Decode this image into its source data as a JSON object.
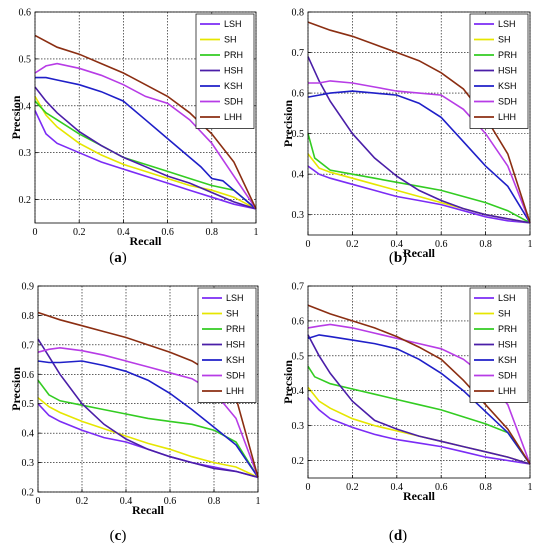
{
  "colors": {
    "LSH": "#7b2cf5",
    "SH": "#e6e600",
    "PRH": "#33cc22",
    "HSH": "#4a1ea8",
    "KSH": "#1f1fc8",
    "SDH": "#b73ce6",
    "LHH": "#8b2e12"
  },
  "chart_data": [
    {
      "type": "line",
      "panel_label": "a",
      "xlabel": "Recall",
      "ylabel": "Precsion",
      "xlim": [
        0,
        1
      ],
      "ylim": [
        0.15,
        0.6
      ],
      "xticks": [
        0,
        0.2,
        0.4,
        0.6,
        0.8,
        1
      ],
      "xtick_labels": [
        "0",
        "0.2",
        "0.4",
        "0.6",
        "0.8",
        "1"
      ],
      "yticks": [
        0.2,
        0.3,
        0.4,
        0.5,
        0.6
      ],
      "ytick_labels": [
        "0.2",
        "0.3",
        "0.4",
        "0.5",
        "0.6"
      ],
      "grid": true,
      "legend_position": "top-right",
      "series": [
        {
          "name": "LSH",
          "x": [
            0,
            0.05,
            0.1,
            0.2,
            0.3,
            0.4,
            0.5,
            0.6,
            0.7,
            0.8,
            0.9,
            1.0
          ],
          "y": [
            0.39,
            0.34,
            0.32,
            0.3,
            0.28,
            0.265,
            0.25,
            0.235,
            0.22,
            0.205,
            0.19,
            0.18
          ]
        },
        {
          "name": "SH",
          "x": [
            0,
            0.05,
            0.1,
            0.2,
            0.3,
            0.4,
            0.5,
            0.6,
            0.7,
            0.8,
            0.9,
            1.0
          ],
          "y": [
            0.42,
            0.38,
            0.355,
            0.32,
            0.295,
            0.275,
            0.26,
            0.245,
            0.23,
            0.22,
            0.205,
            0.18
          ]
        },
        {
          "name": "PRH",
          "x": [
            0,
            0.05,
            0.1,
            0.2,
            0.3,
            0.4,
            0.5,
            0.6,
            0.7,
            0.8,
            0.9,
            1.0
          ],
          "y": [
            0.41,
            0.385,
            0.37,
            0.34,
            0.315,
            0.29,
            0.275,
            0.26,
            0.245,
            0.23,
            0.22,
            0.18
          ]
        },
        {
          "name": "HSH",
          "x": [
            0,
            0.05,
            0.1,
            0.2,
            0.3,
            0.4,
            0.5,
            0.6,
            0.7,
            0.8,
            0.9,
            1.0
          ],
          "y": [
            0.44,
            0.41,
            0.385,
            0.345,
            0.315,
            0.29,
            0.27,
            0.25,
            0.235,
            0.215,
            0.195,
            0.18
          ]
        },
        {
          "name": "KSH",
          "x": [
            0,
            0.05,
            0.1,
            0.2,
            0.3,
            0.4,
            0.5,
            0.6,
            0.7,
            0.75,
            0.8,
            0.85,
            0.9,
            1.0
          ],
          "y": [
            0.46,
            0.46,
            0.455,
            0.445,
            0.43,
            0.41,
            0.37,
            0.33,
            0.29,
            0.27,
            0.245,
            0.24,
            0.22,
            0.18
          ]
        },
        {
          "name": "SDH",
          "x": [
            0,
            0.05,
            0.1,
            0.2,
            0.3,
            0.4,
            0.5,
            0.6,
            0.7,
            0.8,
            0.9,
            1.0
          ],
          "y": [
            0.47,
            0.485,
            0.49,
            0.48,
            0.465,
            0.445,
            0.42,
            0.405,
            0.37,
            0.32,
            0.25,
            0.18
          ]
        },
        {
          "name": "LHH",
          "x": [
            0,
            0.1,
            0.2,
            0.3,
            0.4,
            0.5,
            0.6,
            0.7,
            0.8,
            0.9,
            1.0
          ],
          "y": [
            0.55,
            0.525,
            0.51,
            0.49,
            0.47,
            0.445,
            0.42,
            0.385,
            0.34,
            0.28,
            0.18
          ]
        }
      ]
    },
    {
      "type": "line",
      "panel_label": "b",
      "xlabel": "Recall",
      "ylabel": "Precision",
      "xlim": [
        0,
        1
      ],
      "ylim": [
        0.25,
        0.8
      ],
      "xticks": [
        0,
        0.2,
        0.4,
        0.6,
        0.8,
        1
      ],
      "xtick_labels": [
        "0",
        "0.2",
        "0.4",
        "0.6",
        "0.8",
        "1"
      ],
      "yticks": [
        0.3,
        0.4,
        0.5,
        0.6,
        0.7,
        0.8
      ],
      "ytick_labels": [
        "0.3",
        "0.4",
        "0.5",
        "0.6",
        "0.7",
        "0.8"
      ],
      "grid": true,
      "legend_position": "top-right",
      "series": [
        {
          "name": "LSH",
          "x": [
            0,
            0.05,
            0.1,
            0.2,
            0.3,
            0.4,
            0.5,
            0.6,
            0.7,
            0.8,
            0.9,
            1.0
          ],
          "y": [
            0.42,
            0.4,
            0.39,
            0.375,
            0.36,
            0.345,
            0.335,
            0.325,
            0.31,
            0.295,
            0.285,
            0.28
          ]
        },
        {
          "name": "SH",
          "x": [
            0,
            0.05,
            0.1,
            0.2,
            0.3,
            0.4,
            0.5,
            0.6,
            0.7,
            0.8,
            0.9,
            1.0
          ],
          "y": [
            0.45,
            0.415,
            0.405,
            0.39,
            0.375,
            0.36,
            0.345,
            0.33,
            0.315,
            0.3,
            0.29,
            0.28
          ]
        },
        {
          "name": "PRH",
          "x": [
            0,
            0.03,
            0.1,
            0.2,
            0.3,
            0.4,
            0.5,
            0.6,
            0.7,
            0.8,
            0.9,
            1.0
          ],
          "y": [
            0.5,
            0.44,
            0.41,
            0.4,
            0.39,
            0.38,
            0.37,
            0.36,
            0.345,
            0.33,
            0.31,
            0.28
          ]
        },
        {
          "name": "HSH",
          "x": [
            0,
            0.05,
            0.1,
            0.2,
            0.3,
            0.4,
            0.5,
            0.6,
            0.7,
            0.8,
            0.9,
            1.0
          ],
          "y": [
            0.69,
            0.63,
            0.58,
            0.5,
            0.44,
            0.395,
            0.36,
            0.335,
            0.315,
            0.3,
            0.29,
            0.28
          ]
        },
        {
          "name": "KSH",
          "x": [
            0,
            0.05,
            0.1,
            0.2,
            0.3,
            0.4,
            0.5,
            0.6,
            0.7,
            0.8,
            0.9,
            1.0
          ],
          "y": [
            0.59,
            0.595,
            0.6,
            0.605,
            0.6,
            0.595,
            0.575,
            0.54,
            0.48,
            0.42,
            0.37,
            0.28
          ]
        },
        {
          "name": "SDH",
          "x": [
            0,
            0.05,
            0.1,
            0.2,
            0.3,
            0.4,
            0.5,
            0.6,
            0.7,
            0.8,
            0.9,
            1.0
          ],
          "y": [
            0.625,
            0.625,
            0.63,
            0.625,
            0.615,
            0.605,
            0.6,
            0.595,
            0.56,
            0.5,
            0.42,
            0.28
          ]
        },
        {
          "name": "LHH",
          "x": [
            0,
            0.1,
            0.2,
            0.3,
            0.4,
            0.5,
            0.6,
            0.7,
            0.8,
            0.9,
            1.0
          ],
          "y": [
            0.775,
            0.755,
            0.74,
            0.72,
            0.7,
            0.68,
            0.65,
            0.61,
            0.54,
            0.45,
            0.28
          ]
        }
      ]
    },
    {
      "type": "line",
      "panel_label": "c",
      "xlabel": "Recall",
      "ylabel": "Precsion",
      "xlim": [
        0,
        1
      ],
      "ylim": [
        0.2,
        0.9
      ],
      "xticks": [
        0,
        0.2,
        0.4,
        0.6,
        0.8,
        1
      ],
      "xtick_labels": [
        "0",
        "0.2",
        "0.4",
        "0.6",
        "0.8",
        "1"
      ],
      "yticks": [
        0.2,
        0.3,
        0.4,
        0.5,
        0.6,
        0.7,
        0.8,
        0.9
      ],
      "ytick_labels": [
        "0.2",
        "0.3",
        "0.4",
        "0.5",
        "0.6",
        "0.7",
        "0.8",
        "0.9"
      ],
      "grid": true,
      "legend_position": "top-right",
      "series": [
        {
          "name": "LSH",
          "x": [
            0,
            0.05,
            0.1,
            0.2,
            0.3,
            0.4,
            0.5,
            0.6,
            0.7,
            0.8,
            0.9,
            1.0
          ],
          "y": [
            0.5,
            0.46,
            0.44,
            0.41,
            0.385,
            0.37,
            0.345,
            0.32,
            0.3,
            0.285,
            0.27,
            0.25
          ]
        },
        {
          "name": "SH",
          "x": [
            0,
            0.05,
            0.1,
            0.2,
            0.3,
            0.4,
            0.5,
            0.6,
            0.7,
            0.8,
            0.9,
            1.0
          ],
          "y": [
            0.52,
            0.49,
            0.47,
            0.44,
            0.415,
            0.39,
            0.365,
            0.345,
            0.32,
            0.3,
            0.285,
            0.25
          ]
        },
        {
          "name": "PRH",
          "x": [
            0,
            0.05,
            0.1,
            0.2,
            0.3,
            0.4,
            0.5,
            0.6,
            0.7,
            0.8,
            0.9,
            1.0
          ],
          "y": [
            0.58,
            0.53,
            0.51,
            0.495,
            0.48,
            0.465,
            0.45,
            0.44,
            0.43,
            0.41,
            0.37,
            0.25
          ]
        },
        {
          "name": "HSH",
          "x": [
            0,
            0.05,
            0.1,
            0.2,
            0.3,
            0.4,
            0.5,
            0.6,
            0.7,
            0.8,
            0.9,
            1.0
          ],
          "y": [
            0.72,
            0.66,
            0.6,
            0.5,
            0.43,
            0.38,
            0.345,
            0.32,
            0.3,
            0.28,
            0.27,
            0.25
          ]
        },
        {
          "name": "KSH",
          "x": [
            0,
            0.05,
            0.1,
            0.2,
            0.3,
            0.4,
            0.5,
            0.6,
            0.7,
            0.8,
            0.9,
            1.0
          ],
          "y": [
            0.645,
            0.64,
            0.64,
            0.645,
            0.63,
            0.61,
            0.58,
            0.535,
            0.48,
            0.42,
            0.36,
            0.25
          ]
        },
        {
          "name": "SDH",
          "x": [
            0,
            0.05,
            0.1,
            0.2,
            0.3,
            0.4,
            0.5,
            0.6,
            0.7,
            0.8,
            0.9,
            1.0
          ],
          "y": [
            0.675,
            0.685,
            0.69,
            0.68,
            0.665,
            0.645,
            0.625,
            0.605,
            0.585,
            0.54,
            0.45,
            0.25
          ]
        },
        {
          "name": "LHH",
          "x": [
            0,
            0.1,
            0.2,
            0.3,
            0.4,
            0.5,
            0.6,
            0.7,
            0.8,
            0.9,
            1.0
          ],
          "y": [
            0.81,
            0.785,
            0.765,
            0.745,
            0.725,
            0.7,
            0.675,
            0.645,
            0.6,
            0.52,
            0.25
          ]
        }
      ]
    },
    {
      "type": "line",
      "panel_label": "d",
      "xlabel": "Recall",
      "ylabel": "Precsion",
      "xlim": [
        0,
        1
      ],
      "ylim": [
        0.15,
        0.7
      ],
      "xticks": [
        0,
        0.2,
        0.4,
        0.6,
        0.8,
        1
      ],
      "xtick_labels": [
        "0",
        "0.2",
        "0.4",
        "0.6",
        "0.8",
        "1"
      ],
      "yticks": [
        0.2,
        0.3,
        0.4,
        0.5,
        0.6,
        0.7
      ],
      "ytick_labels": [
        "0.2",
        "0.3",
        "0.4",
        "0.5",
        "0.6",
        "0.7"
      ],
      "grid": true,
      "legend_position": "top-right",
      "series": [
        {
          "name": "LSH",
          "x": [
            0,
            0.05,
            0.1,
            0.2,
            0.3,
            0.4,
            0.5,
            0.6,
            0.7,
            0.8,
            0.9,
            1.0
          ],
          "y": [
            0.38,
            0.345,
            0.32,
            0.295,
            0.275,
            0.26,
            0.25,
            0.24,
            0.225,
            0.21,
            0.2,
            0.19
          ]
        },
        {
          "name": "SH",
          "x": [
            0,
            0.05,
            0.1,
            0.2,
            0.3,
            0.4,
            0.5,
            0.6,
            0.7,
            0.8,
            0.9,
            1.0
          ],
          "y": [
            0.41,
            0.37,
            0.35,
            0.32,
            0.3,
            0.285,
            0.27,
            0.255,
            0.24,
            0.225,
            0.21,
            0.19
          ]
        },
        {
          "name": "PRH",
          "x": [
            0,
            0.03,
            0.1,
            0.2,
            0.3,
            0.4,
            0.5,
            0.6,
            0.7,
            0.8,
            0.9,
            1.0
          ],
          "y": [
            0.47,
            0.44,
            0.42,
            0.405,
            0.39,
            0.375,
            0.36,
            0.345,
            0.325,
            0.305,
            0.28,
            0.19
          ]
        },
        {
          "name": "HSH",
          "x": [
            0,
            0.05,
            0.1,
            0.2,
            0.3,
            0.4,
            0.5,
            0.6,
            0.7,
            0.8,
            0.9,
            1.0
          ],
          "y": [
            0.56,
            0.5,
            0.45,
            0.37,
            0.315,
            0.29,
            0.27,
            0.255,
            0.24,
            0.225,
            0.21,
            0.19
          ]
        },
        {
          "name": "KSH",
          "x": [
            0,
            0.05,
            0.1,
            0.2,
            0.3,
            0.4,
            0.5,
            0.6,
            0.7,
            0.8,
            0.9,
            1.0
          ],
          "y": [
            0.55,
            0.56,
            0.555,
            0.545,
            0.535,
            0.52,
            0.49,
            0.45,
            0.4,
            0.34,
            0.28,
            0.19
          ]
        },
        {
          "name": "SDH",
          "x": [
            0,
            0.05,
            0.1,
            0.2,
            0.3,
            0.4,
            0.5,
            0.6,
            0.7,
            0.8,
            0.9,
            1.0
          ],
          "y": [
            0.58,
            0.585,
            0.59,
            0.58,
            0.565,
            0.55,
            0.535,
            0.52,
            0.49,
            0.44,
            0.36,
            0.19
          ]
        },
        {
          "name": "LHH",
          "x": [
            0,
            0.1,
            0.2,
            0.3,
            0.4,
            0.5,
            0.6,
            0.7,
            0.8,
            0.9,
            1.0
          ],
          "y": [
            0.645,
            0.62,
            0.6,
            0.58,
            0.555,
            0.525,
            0.49,
            0.43,
            0.36,
            0.29,
            0.19
          ]
        }
      ]
    }
  ]
}
